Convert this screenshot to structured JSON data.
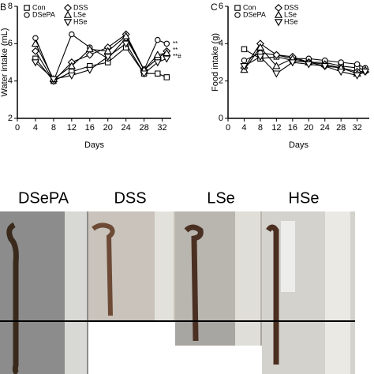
{
  "chart_data": [
    {
      "type": "line",
      "panel": "B",
      "xlabel": "Days",
      "ylabel": "Water intake (mL)",
      "x": [
        4,
        8,
        12,
        16,
        20,
        24,
        28,
        31,
        33
      ],
      "xlim": [
        0,
        34
      ],
      "xticks": [
        0,
        4,
        8,
        12,
        16,
        20,
        24,
        28,
        32
      ],
      "ylim": [
        2,
        8
      ],
      "yticks": [
        2,
        4,
        6,
        8
      ],
      "series": [
        {
          "name": "Con",
          "color": "#000000",
          "marker": "square",
          "values": [
            5.2,
            4.0,
            4.5,
            4.8,
            5.0,
            5.8,
            4.4,
            4.4,
            4.2
          ]
        },
        {
          "name": "DSePA",
          "color": "#000000",
          "marker": "circle",
          "values": [
            6.3,
            4.0,
            6.5,
            5.8,
            5.2,
            6.3,
            4.6,
            6.2,
            6.0
          ]
        },
        {
          "name": "DSS",
          "color": "#000000",
          "marker": "diamond",
          "values": [
            5.6,
            4.0,
            5.0,
            5.4,
            5.8,
            6.5,
            4.6,
            5.2,
            5.6
          ]
        },
        {
          "name": "LSe",
          "color": "#000000",
          "marker": "triangle-up",
          "values": [
            6.0,
            4.1,
            4.8,
            5.7,
            5.6,
            6.4,
            4.6,
            5.4,
            5.5
          ]
        },
        {
          "name": "HSe",
          "color": "#000000",
          "marker": "triangle-down",
          "values": [
            5.0,
            4.1,
            4.3,
            4.6,
            5.3,
            6.0,
            4.4,
            5.0,
            5.2
          ]
        }
      ],
      "annotations": [
        "**",
        "**",
        "**#"
      ]
    },
    {
      "type": "line",
      "panel": "C",
      "xlabel": "Days",
      "ylabel": "Food intake (g)",
      "x": [
        4,
        8,
        12,
        16,
        20,
        24,
        28,
        32,
        34
      ],
      "xlim": [
        0,
        35
      ],
      "xticks": [
        0,
        4,
        8,
        12,
        16,
        20,
        24,
        28,
        32
      ],
      "ylim": [
        0,
        6
      ],
      "yticks": [
        0,
        2,
        4,
        6
      ],
      "series": [
        {
          "name": "Con",
          "color": "#000000",
          "marker": "square",
          "values": [
            3.7,
            3.2,
            3.3,
            3.1,
            3.0,
            3.0,
            2.8,
            2.7,
            2.6
          ]
        },
        {
          "name": "DSePA",
          "color": "#000000",
          "marker": "circle",
          "values": [
            3.1,
            3.5,
            3.4,
            3.2,
            3.2,
            3.1,
            3.0,
            2.9,
            2.7
          ]
        },
        {
          "name": "DSS",
          "color": "#000000",
          "marker": "diamond",
          "values": [
            2.7,
            4.0,
            3.4,
            3.3,
            3.0,
            2.8,
            2.7,
            2.5,
            2.5
          ]
        },
        {
          "name": "LSe",
          "color": "#000000",
          "marker": "triangle-up",
          "values": [
            2.6,
            3.8,
            2.8,
            3.2,
            3.0,
            2.9,
            2.7,
            2.4,
            2.6
          ]
        },
        {
          "name": "HSe",
          "color": "#000000",
          "marker": "triangle-down",
          "values": [
            2.8,
            3.3,
            2.4,
            3.0,
            2.9,
            2.8,
            2.5,
            2.3,
            2.5
          ]
        }
      ]
    }
  ],
  "photos": {
    "labels": [
      "DSePA",
      "DSS",
      "LSe",
      "HSe"
    ]
  }
}
